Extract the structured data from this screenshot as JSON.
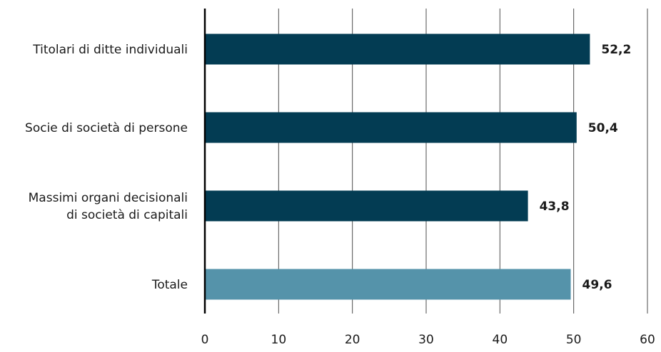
{
  "chart_data": {
    "type": "bar",
    "orientation": "horizontal",
    "categories": [
      [
        "Titolari di ditte individuali"
      ],
      [
        "Socie di società di persone"
      ],
      [
        "Massimi organi decisionali",
        "di società di capitali"
      ],
      [
        "Totale"
      ]
    ],
    "values": [
      52.2,
      50.4,
      43.8,
      49.6
    ],
    "value_labels": [
      "52,2",
      "50,4",
      "43,8",
      "49,6"
    ],
    "xlim": [
      0,
      60
    ],
    "xticks": [
      0,
      10,
      20,
      30,
      40,
      50,
      60
    ],
    "grid": "vertical",
    "colors": {
      "bar": "#033c53",
      "total_bar": "#5593aa",
      "grid": "#4d4d4d",
      "axis": "#000000"
    }
  }
}
